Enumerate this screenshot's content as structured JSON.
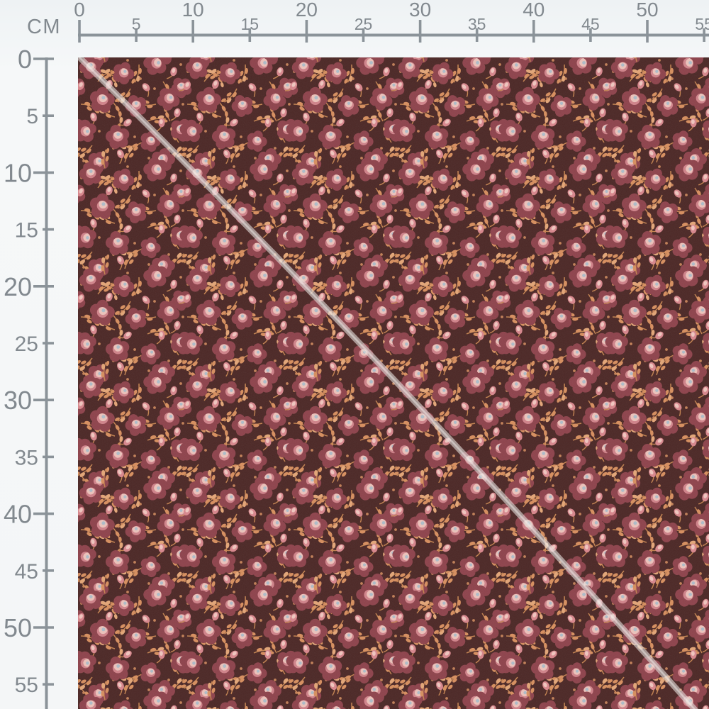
{
  "ruler": {
    "unit_label": "CM",
    "color": "#8b9399",
    "label_color": "#82898f",
    "horizontal_values": [
      "0",
      "5",
      "10",
      "15",
      "20",
      "25",
      "30",
      "35",
      "40",
      "45",
      "50",
      "55"
    ],
    "vertical_values": [
      "0",
      "5",
      "10",
      "15",
      "20",
      "25",
      "30",
      "35",
      "40",
      "45",
      "50",
      "55"
    ]
  },
  "fabric": {
    "description": "Dark burgundy-brown calico fabric swatch with small ditsy floral print (dark red roses, pink buds, tan leafy sprigs) and a pale diagonal seam line from top-left to bottom-right",
    "colors": {
      "background": "#4c2826",
      "petal_dark": "#8e434c",
      "petal_mid": "#d0838a",
      "petal_light": "#ecc3bb",
      "flower_center": "#adbcc8",
      "leaf": "#d78f5f",
      "leaf_light": "#e3a678",
      "stem": "#c3824f",
      "bud": "#d8878d",
      "bud_light": "#f0c6bf",
      "seam": "rgba(226,222,219,0.6)",
      "seam_core": "rgba(246,244,241,0.45)"
    }
  }
}
